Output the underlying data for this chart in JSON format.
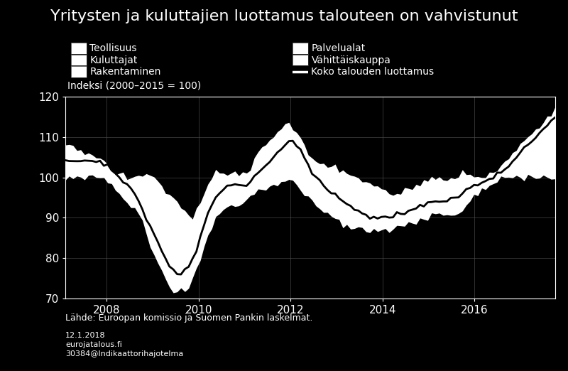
{
  "title": "Yritysten ja kuluttajien luottamus talouteen on vahvistunut",
  "ylabel": "Indeksi (2000–2015 = 100)",
  "source_line1": "Lähde: Euroopan komissio ja Suomen Pankin laskelmat.",
  "source_line2": "12.1.2018",
  "source_line3": "eurojatalous.fi",
  "source_line4": "30384@Indikaattorihajotelma",
  "legend_left": [
    "Teollisuus",
    "Kuluttajat",
    "Rakentaminen"
  ],
  "legend_right": [
    "Palvelualat",
    "Vähittäiskauppa",
    "Koko talouden luottamus"
  ],
  "ylim": [
    70,
    120
  ],
  "xlim": [
    2007.1,
    2017.75
  ],
  "xticks": [
    2008,
    2010,
    2012,
    2014,
    2016
  ],
  "yticks": [
    70,
    80,
    90,
    100,
    110,
    120
  ],
  "background_color": "#000000",
  "plot_background_color": "#000000",
  "grid_color": "#555555",
  "text_color": "#ffffff",
  "title_fontsize": 16,
  "label_fontsize": 10,
  "tick_fontsize": 11,
  "source_fontsize": 9,
  "source_small_fontsize": 8,
  "upper_data": [
    108,
    108,
    108,
    107,
    107,
    106,
    106,
    105,
    105,
    105,
    104,
    103,
    102,
    101,
    101,
    101,
    100,
    100,
    101,
    101,
    101,
    101,
    101,
    100,
    99,
    98,
    97,
    96,
    95,
    94,
    93,
    92,
    91,
    90,
    92,
    94,
    96,
    98,
    100,
    102,
    101,
    101,
    101,
    101,
    101,
    101,
    101,
    101,
    102,
    104,
    106,
    108,
    108,
    109,
    110,
    111,
    112,
    113,
    113,
    112,
    111,
    110,
    108,
    106,
    105,
    104,
    103,
    103,
    103,
    103,
    103,
    102,
    102,
    101,
    100,
    100,
    100,
    99,
    99,
    98,
    98,
    98,
    97,
    97,
    96,
    96,
    96,
    96,
    97,
    97,
    97,
    98,
    98,
    99,
    99,
    100,
    100,
    100,
    100,
    100,
    100,
    100,
    100,
    101,
    101,
    101,
    100,
    100,
    100,
    100,
    101,
    101,
    102,
    103,
    104,
    105,
    106,
    107,
    108,
    109,
    110,
    111,
    112,
    113,
    114,
    115,
    116,
    117
  ],
  "lower_data": [
    100,
    100,
    100,
    100,
    100,
    100,
    100,
    100,
    100,
    100,
    100,
    99,
    98,
    97,
    96,
    95,
    94,
    93,
    92,
    91,
    89,
    86,
    83,
    81,
    79,
    77,
    75,
    73,
    72,
    72,
    72,
    72,
    73,
    75,
    77,
    80,
    83,
    86,
    88,
    90,
    91,
    92,
    93,
    93,
    93,
    93,
    94,
    95,
    95,
    96,
    97,
    97,
    97,
    98,
    98,
    98,
    99,
    99,
    99,
    99,
    98,
    97,
    96,
    95,
    94,
    93,
    92,
    91,
    91,
    90,
    90,
    89,
    88,
    88,
    87,
    87,
    87,
    87,
    87,
    87,
    87,
    87,
    87,
    87,
    87,
    88,
    88,
    88,
    88,
    89,
    89,
    89,
    90,
    90,
    90,
    91,
    91,
    91,
    91,
    91,
    91,
    91,
    91,
    92,
    93,
    94,
    95,
    96,
    97,
    97,
    98,
    99,
    99,
    100,
    100,
    100,
    100,
    100,
    100,
    100,
    101,
    101,
    101,
    100,
    100,
    100,
    100,
    100
  ],
  "total_data": [
    104,
    104,
    104,
    104,
    104,
    104,
    104,
    104,
    104,
    104,
    103,
    103,
    102,
    101,
    100,
    99,
    98,
    97,
    96,
    94,
    92,
    90,
    88,
    86,
    84,
    82,
    80,
    78,
    77,
    76,
    76,
    77,
    78,
    80,
    82,
    85,
    88,
    91,
    93,
    95,
    96,
    97,
    98,
    98,
    98,
    98,
    98,
    98,
    99,
    100,
    101,
    102,
    103,
    104,
    105,
    106,
    107,
    108,
    109,
    109,
    108,
    107,
    105,
    103,
    101,
    100,
    99,
    98,
    97,
    96,
    96,
    95,
    94,
    93,
    93,
    92,
    92,
    91,
    91,
    90,
    90,
    90,
    90,
    90,
    90,
    90,
    91,
    91,
    91,
    92,
    92,
    92,
    93,
    93,
    94,
    94,
    94,
    94,
    94,
    94,
    95,
    95,
    95,
    96,
    97,
    97,
    98,
    98,
    99,
    99,
    100,
    100,
    101,
    101,
    102,
    103,
    104,
    105,
    106,
    107,
    108,
    109,
    110,
    111,
    112,
    113,
    114,
    115
  ]
}
